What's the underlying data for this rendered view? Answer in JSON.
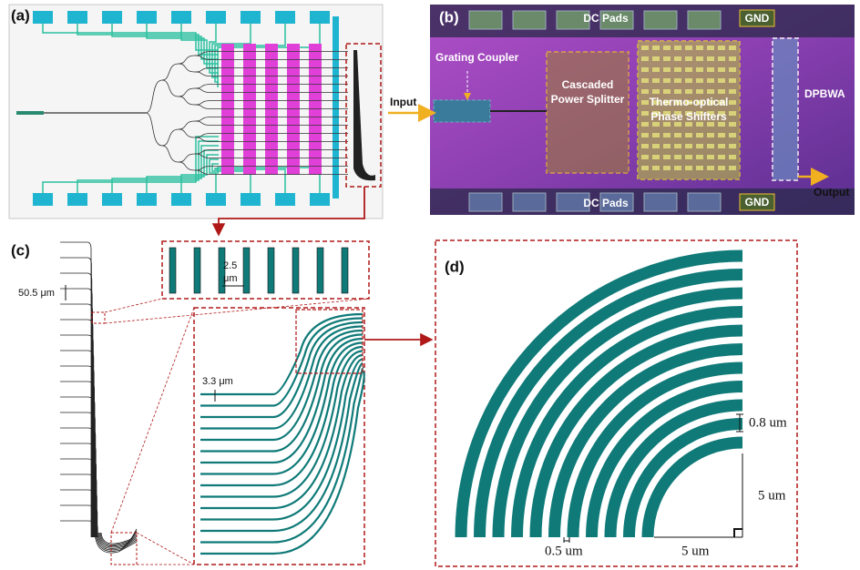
{
  "panels": {
    "a": {
      "label": "(a)"
    },
    "b": {
      "label": "(b)",
      "dc_pads_top": "DC Pads",
      "dc_pads_bottom": "DC Pads",
      "gnd_top": "GND",
      "gnd_bottom": "GND",
      "grating_coupler": "Grating Coupler",
      "input": "Input",
      "splitter": [
        "Cascaded",
        "Power Splitter"
      ],
      "phase_shifters": [
        "Thermo-optical",
        "Phase Shifters"
      ],
      "dpbwa": "DPBWA",
      "output": "Output"
    },
    "c": {
      "label": "(c)",
      "pitch": "50.5 μm",
      "gap": [
        "2.5",
        "μm"
      ],
      "spacing": "3.3 μm"
    },
    "d": {
      "label": "(d)",
      "ring_width": "0.8 um",
      "radius_vertical": "5 um",
      "gap": "0.5 um",
      "radius_horizontal": "5 um"
    }
  }
}
